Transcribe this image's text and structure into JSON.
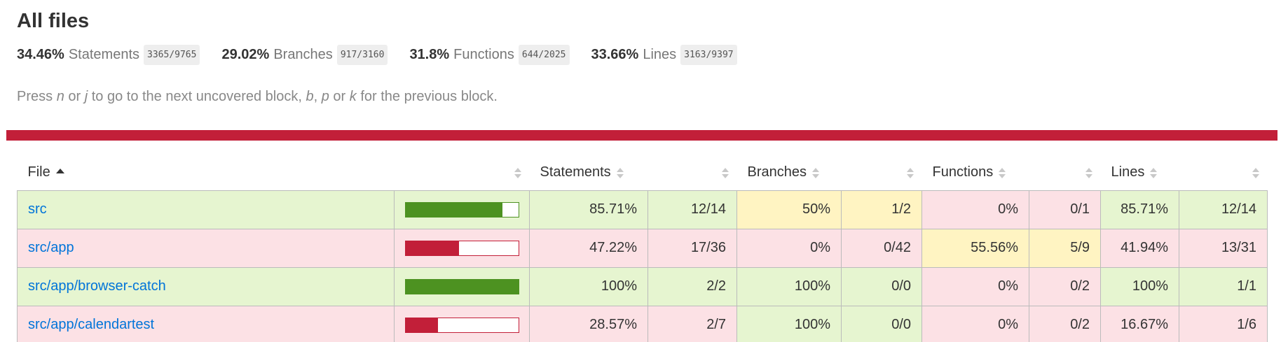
{
  "header": {
    "title": "All files",
    "summary": [
      {
        "pct": "34.46%",
        "label": "Statements",
        "fraction": "3365/9765"
      },
      {
        "pct": "29.02%",
        "label": "Branches",
        "fraction": "917/3160"
      },
      {
        "pct": "31.8%",
        "label": "Functions",
        "fraction": "644/2025"
      },
      {
        "pct": "33.66%",
        "label": "Lines",
        "fraction": "3163/9397"
      }
    ],
    "hint": {
      "t1": "Press ",
      "k1": "n",
      "t2": " or ",
      "k2": "j",
      "t3": " to go to the next uncovered block, ",
      "k3": "b",
      "t4": ", ",
      "k4": "p",
      "t5": " or ",
      "k5": "k",
      "t6": " for the previous block."
    }
  },
  "table": {
    "headers": {
      "file": "File",
      "statements": "Statements",
      "branches": "Branches",
      "functions": "Functions",
      "lines": "Lines"
    },
    "rows": [
      {
        "file": "src",
        "cover_pct": 85.71,
        "stmt_pct": "85.71%",
        "stmt_frac": "12/14",
        "br_pct": "50%",
        "br_frac": "1/2",
        "fn_pct": "0%",
        "fn_frac": "0/1",
        "ln_pct": "85.71%",
        "ln_frac": "12/14"
      },
      {
        "file": "src/app",
        "cover_pct": 47.22,
        "stmt_pct": "47.22%",
        "stmt_frac": "17/36",
        "br_pct": "0%",
        "br_frac": "0/42",
        "fn_pct": "55.56%",
        "fn_frac": "5/9",
        "ln_pct": "41.94%",
        "ln_frac": "13/31"
      },
      {
        "file": "src/app/browser-catch",
        "cover_pct": 100,
        "stmt_pct": "100%",
        "stmt_frac": "2/2",
        "br_pct": "100%",
        "br_frac": "0/0",
        "fn_pct": "0%",
        "fn_frac": "0/2",
        "ln_pct": "100%",
        "ln_frac": "1/1"
      },
      {
        "file": "src/app/calendartest",
        "cover_pct": 28.57,
        "stmt_pct": "28.57%",
        "stmt_frac": "2/7",
        "br_pct": "100%",
        "br_frac": "0/0",
        "fn_pct": "0%",
        "fn_frac": "0/2",
        "ln_pct": "16.67%",
        "ln_frac": "1/6"
      }
    ]
  },
  "colors": {
    "high": "#e6f5d0",
    "medium": "#fff4c2",
    "low": "#fce1e5",
    "accent": "#c21f39",
    "bar_high": "#4d9221",
    "link": "#0074d9"
  }
}
